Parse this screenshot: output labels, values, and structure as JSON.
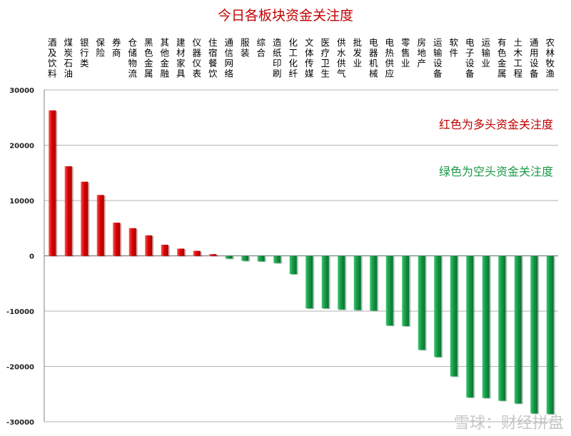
{
  "chart_data": {
    "type": "bar",
    "title": "今日各板块资金关注度",
    "categories": [
      "酒及饮料",
      "煤炭石油",
      "银行类",
      "保险",
      "券商",
      "仓储物流",
      "黑色金属",
      "其他金融",
      "建材家具",
      "仪器仪表",
      "住宿餐饮",
      "通信网络",
      "服装",
      "综合",
      "造纸印刷",
      "化工化纤",
      "文体传媒",
      "医疗卫生",
      "供水供气",
      "批发业",
      "电器机械",
      "电热供应",
      "零售业",
      "房地产",
      "运输设备",
      "软件",
      "电子设备",
      "运输业",
      "有色金属",
      "土木工程",
      "通用设备",
      "农林牧渔"
    ],
    "values": [
      26300,
      16200,
      13400,
      11000,
      6000,
      5000,
      3700,
      2000,
      1300,
      900,
      300,
      -500,
      -900,
      -1000,
      -1300,
      -3300,
      -9500,
      -9500,
      -9700,
      -9800,
      -9900,
      -12600,
      -12700,
      -17000,
      -18300,
      -21800,
      -25600,
      -25700,
      -26200,
      -26700,
      -28500,
      -28600
    ],
    "ylim": [
      -30000,
      30000
    ],
    "yticks": [
      30000,
      20000,
      10000,
      0,
      -10000,
      -20000,
      -30000
    ],
    "grid": true,
    "colors": {
      "positive": "#e00000",
      "negative": "#149a48"
    },
    "annotations": {
      "red_legend": "红色为多头资金关注度",
      "green_legend": "绿色为空头资金关注度"
    }
  },
  "watermark": "雪球：财经拼盘"
}
